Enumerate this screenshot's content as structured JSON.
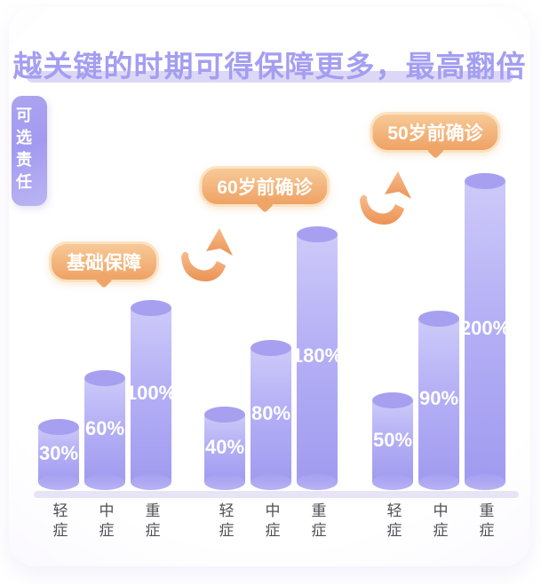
{
  "title": "越关键的时期可得保障更多，最高翻倍",
  "side_tab": "可选责任",
  "colors": {
    "title_purple": "#a49ef1",
    "underline_lavender": "#ddd7f7",
    "cylinder_light": "#cdcaf9",
    "cylinder_deep": "#a19bf0",
    "badge_orange_light": "#f7ca97",
    "badge_orange_deep": "#efa264",
    "arrow_orange": "#ee9355",
    "category_text": "#4f4f57"
  },
  "chart_data": {
    "type": "bar",
    "unit": "%",
    "title": "越关键的时期可得保障更多，最高翻倍",
    "categories": [
      "轻症",
      "中症",
      "重症"
    ],
    "groups": [
      {
        "badge": "基础保障",
        "values": [
          30,
          60,
          100
        ],
        "labels": [
          "30%",
          "60%",
          "100%"
        ]
      },
      {
        "badge": "60岁前确诊",
        "values": [
          40,
          80,
          180
        ],
        "labels": [
          "40%",
          "80%",
          "180%"
        ]
      },
      {
        "badge": "50岁前确诊",
        "values": [
          50,
          90,
          200
        ],
        "labels": [
          "50%",
          "90%",
          "200%"
        ]
      }
    ],
    "ylim": [
      0,
      200
    ],
    "grid": false,
    "legend_position": "none"
  }
}
